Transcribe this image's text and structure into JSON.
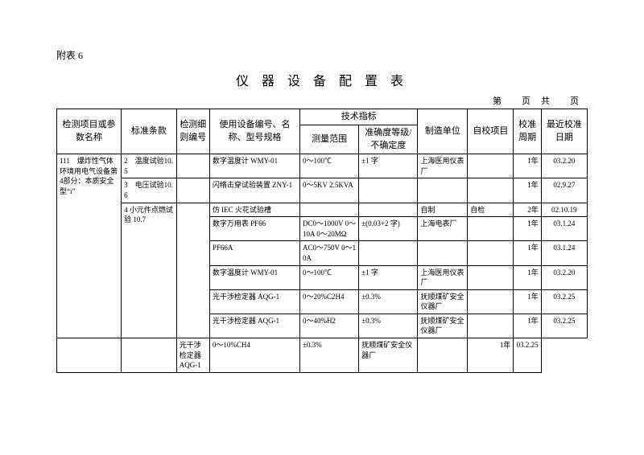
{
  "appendix": "附表 6",
  "title": "仪 器 设 备 配 置 表",
  "page_line": "第　　页　共　　页",
  "headers": {
    "item": "检测项目或参数名称",
    "std": "标准条款",
    "detail": "检测细则编号",
    "equip": "使用设备编号、名称、型号规格",
    "tech": "技术指标",
    "range": "测量范围",
    "acc": "准确度等级/不确定度",
    "mfr": "制造单位",
    "self": "自校项目",
    "period": "校准周期",
    "date": "最近校准日期"
  },
  "r1": {
    "item": "111　爆炸性气体环境用电气设备第4部分：本质安全型“i”",
    "std": "2　温度试验10.5",
    "equip": "数字温度计 WMY-01",
    "range": "0～100℃",
    "acc": "±1 字",
    "mfr": "上海医用仪表厂",
    "period": "1年",
    "date": "03.2.20"
  },
  "r2": {
    "std": "3　电压试验10.6",
    "equip": "闪络击穿试验装置 ZNY-1",
    "range": "0～5KV 2.5KVA",
    "period": "1年",
    "date": "02.9.27"
  },
  "r3a": {
    "std": "4 小元件点燃试验 10.7",
    "equip": "仿 IEC 火花试验槽",
    "mfr": "自制",
    "self": "自检",
    "period": "2年",
    "date": "02.10.19"
  },
  "r3b": {
    "equip": "数字万用表 PF66",
    "range": "DC0～1000V 0～10A 0～20MΩ",
    "acc": "±(0.03+2 字)",
    "mfr": "上海电表厂",
    "period": "1年",
    "date": "03.1.24"
  },
  "r3c": {
    "equip": "PF66A",
    "range": "AC0～750V 0～10A",
    "period": "1年",
    "date": "03.1.24"
  },
  "r3d": {
    "equip": "数字温度计 WMY-01",
    "range": "0～100℃",
    "acc": "±1 字",
    "mfr": "上海医用仪表厂",
    "period": "1年",
    "date": "03.2.20"
  },
  "r3e": {
    "equip": "光干涉检定器 AQG-1",
    "range": "0～20%C2H4",
    "acc": "±0.3%",
    "mfr": "抚顺煤矿安全仪器厂",
    "period": "1年",
    "date": "03.2.25"
  },
  "r3f": {
    "equip": "光干涉检定器 AQG-1",
    "range": "0～40%H2",
    "acc": "±0.3%",
    "mfr": "抚顺煤矿安全仪器厂",
    "period": "1年",
    "date": "03.2.25"
  },
  "r3g": {
    "equip": "光干涉检定器 AQG-1",
    "range": "0～10%CH4",
    "acc": "±0.3%",
    "mfr": "抚顺煤矿安全仪器厂",
    "period": "1年",
    "date": "03.2.25"
  }
}
